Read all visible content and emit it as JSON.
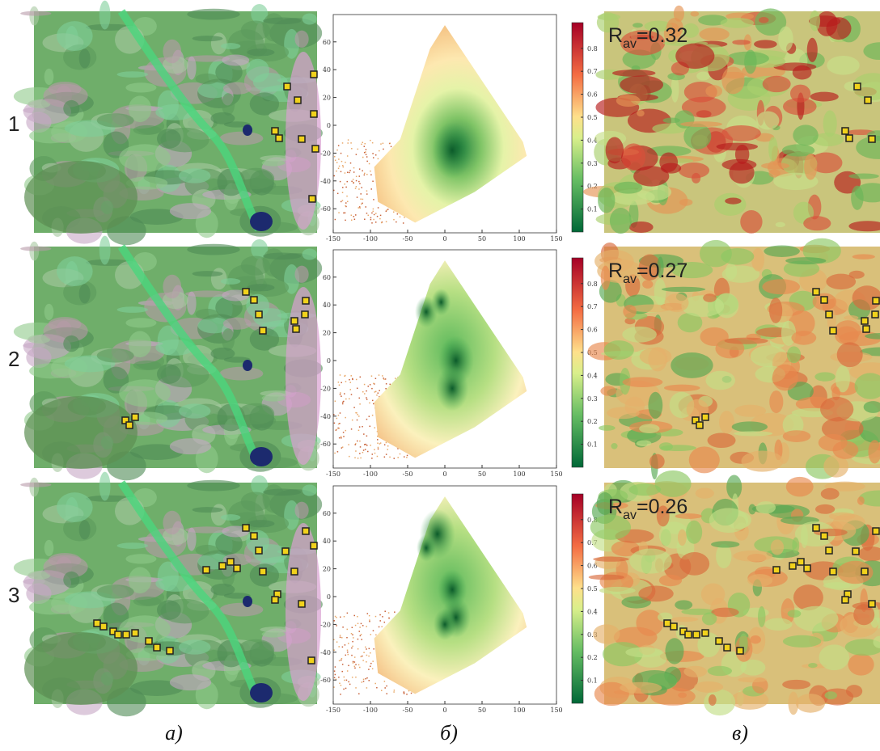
{
  "rows": [
    {
      "label": "1",
      "r_symbol": "R",
      "r_subscript": "av",
      "r_value": "=0.32"
    },
    {
      "label": "2",
      "r_symbol": "R",
      "r_subscript": "av",
      "r_value": "=0.27"
    },
    {
      "label": "3",
      "r_symbol": "R",
      "r_subscript": "av",
      "r_value": "=0.26"
    }
  ],
  "columns": [
    "а)",
    "б)",
    "в)"
  ],
  "scatter_axes": {
    "xticks": [
      -150,
      -100,
      -50,
      0,
      50,
      100,
      150
    ],
    "yticks": [
      -60,
      -40,
      -20,
      0,
      20,
      40,
      60
    ]
  },
  "colorbar_ticks": [
    0.1,
    0.2,
    0.3,
    0.4,
    0.5,
    0.6,
    0.7,
    0.8
  ]
}
